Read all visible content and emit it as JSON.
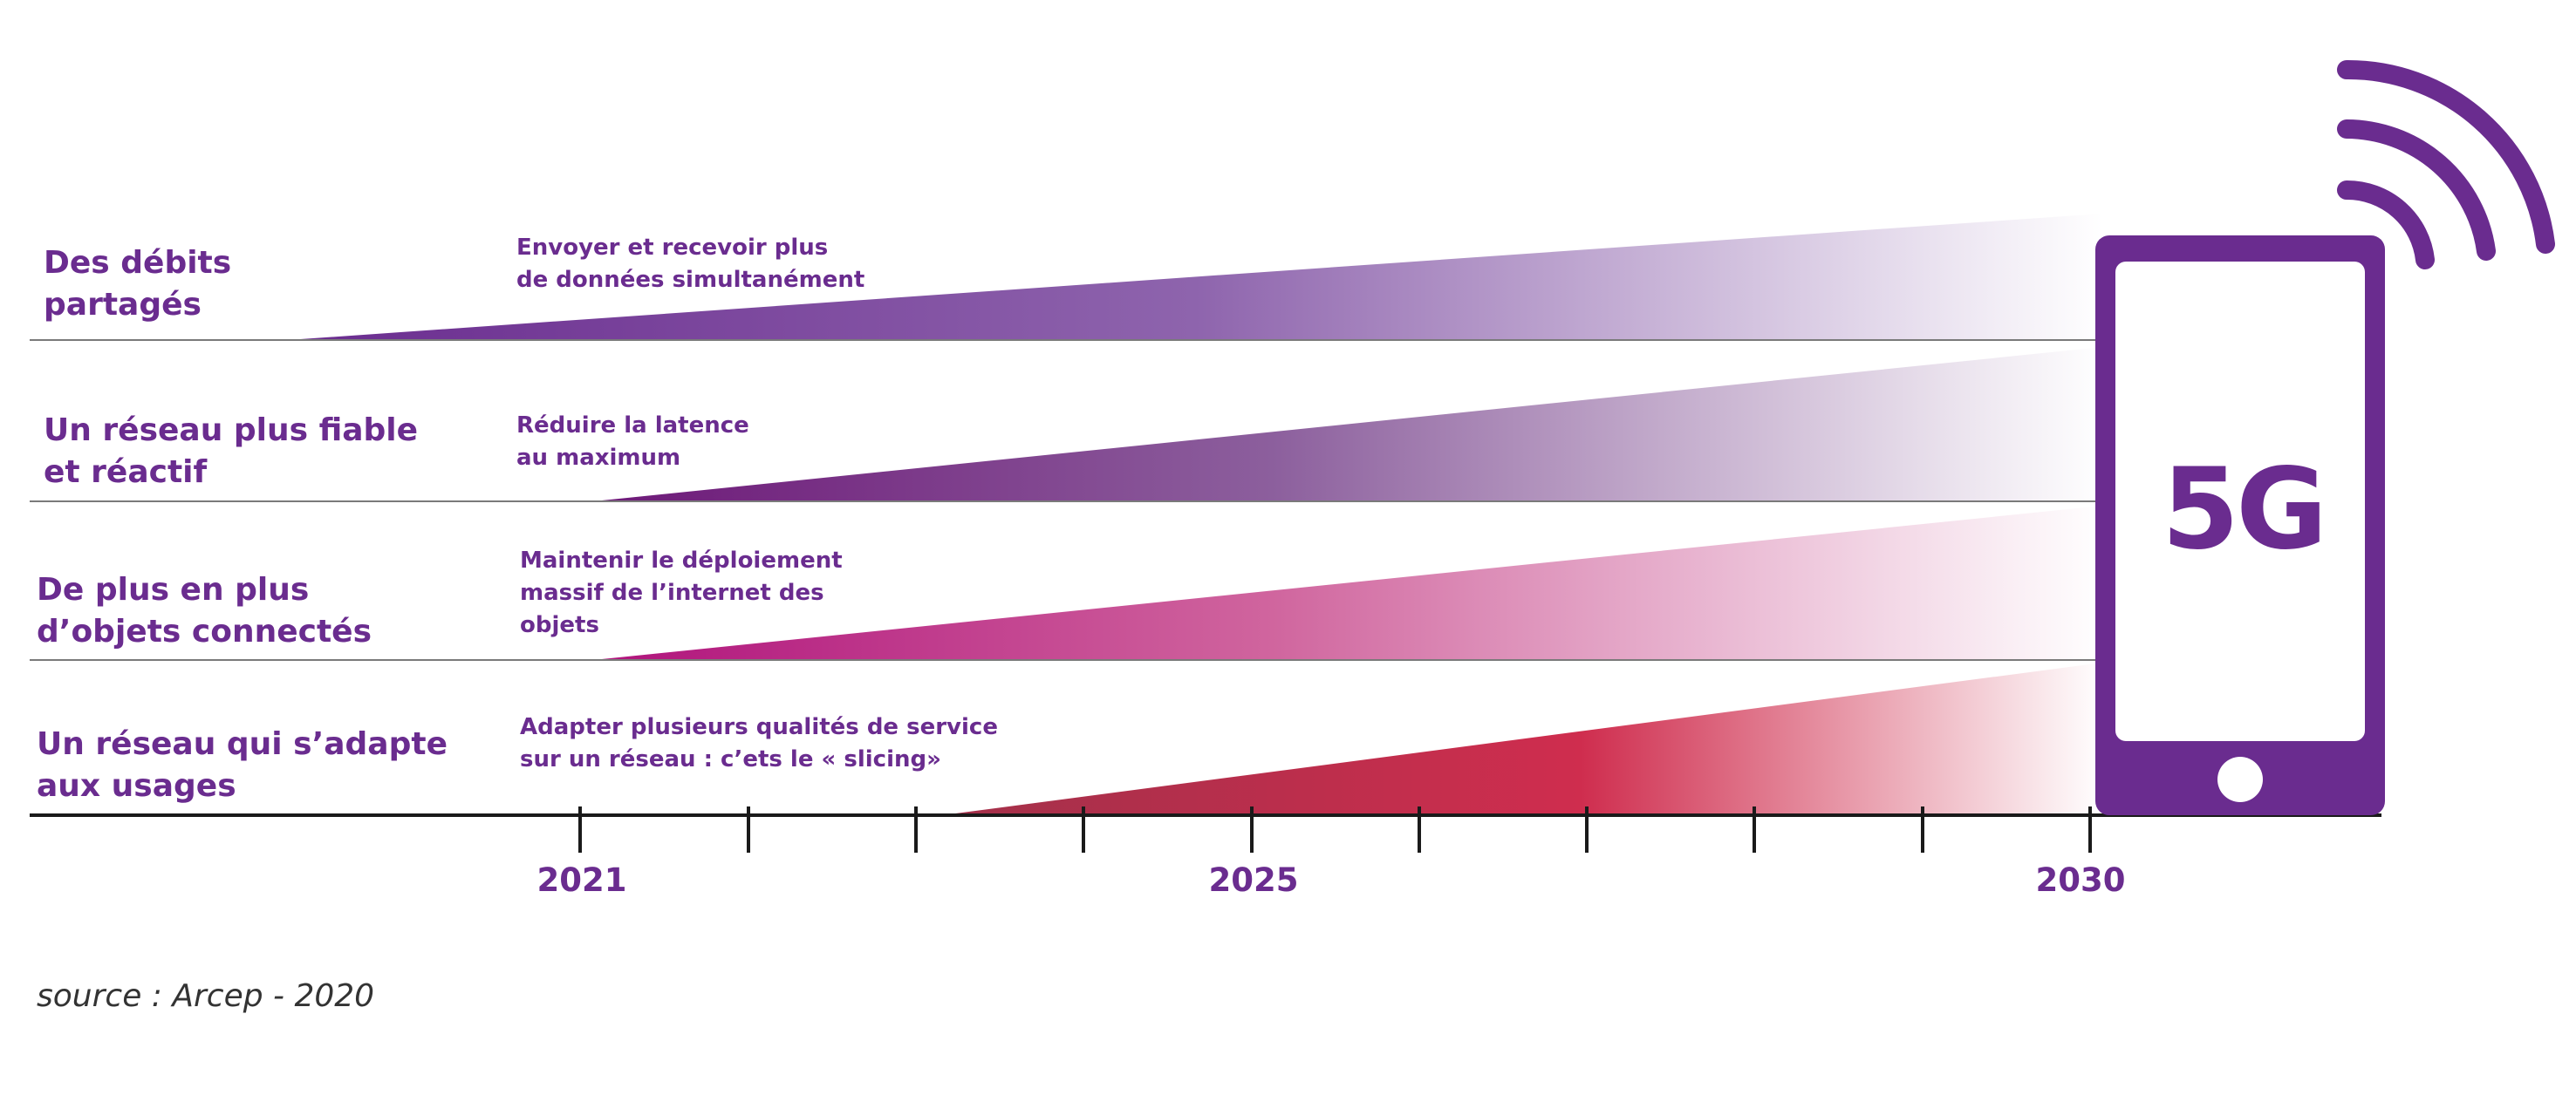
{
  "rows": [
    {
      "title": [
        "Des débits",
        "partagés"
      ],
      "description": [
        "Envoyer et recevoir plus",
        "de données simultanément"
      ],
      "colors": [
        "#6a2c8f",
        "#8e64ad",
        "#ffffff"
      ]
    },
    {
      "title": [
        "Un réseau plus fiable",
        "et réactif"
      ],
      "description": [
        "Réduire la latence",
        "au maximum"
      ],
      "colors": [
        "#6d1878",
        "#8c5f9d",
        "#ffffff"
      ]
    },
    {
      "title": [
        "De plus en plus",
        "d’objets connectés"
      ],
      "description": [
        "Maintenir le déploiement",
        "massif de l’internet des",
        "objets"
      ],
      "colors": [
        "#b0137c",
        "#d0659e",
        "#ffffff"
      ]
    },
    {
      "title": [
        "Un réseau qui s’adapte",
        "aux usages"
      ],
      "description": [
        "Adapter plusieurs qualités de service",
        "sur un réseau : c’ets le « slicing»"
      ],
      "colors": [
        "#a3304a",
        "#cf2d4e",
        "#ffffff"
      ]
    }
  ],
  "timeline": {
    "years": [
      "2021",
      "2025",
      "2030"
    ]
  },
  "device": {
    "label": "5G",
    "color": "#6a2c8f"
  },
  "source": "source : Arcep - 2020"
}
